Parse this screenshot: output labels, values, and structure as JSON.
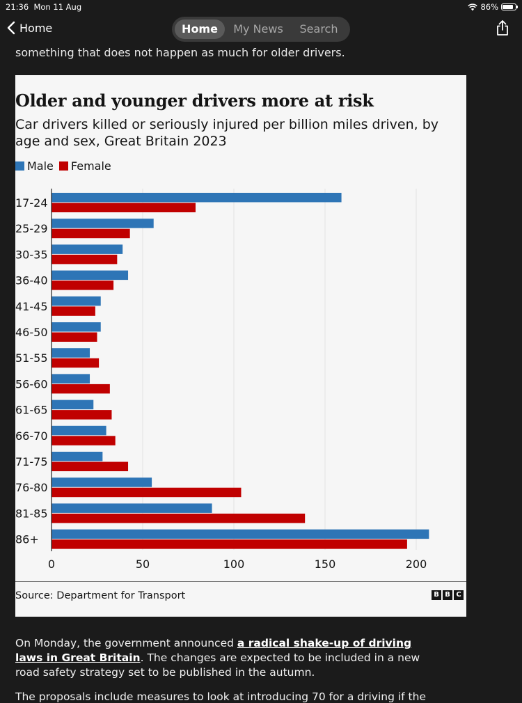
{
  "status": {
    "time": "21:36",
    "date": "Mon 11 Aug",
    "battery": "86%",
    "battery_level": 0.86
  },
  "nav": {
    "back_label": "Home",
    "tabs": [
      {
        "label": "Home",
        "active": true
      },
      {
        "label": "My News",
        "active": false
      },
      {
        "label": "Search",
        "active": false
      }
    ],
    "icons": {
      "back": "chevron-left-icon",
      "share": "share-icon",
      "wifi": "wifi-icon",
      "battery": "battery-icon"
    }
  },
  "article": {
    "previous_text": "something that does not happen as much for older drivers.",
    "paragraph": {
      "before": "On Monday, the government announced ",
      "link": "a radical shake-up of driving laws in Great Britain",
      "after": ". The changes are expected to be included in a new road safety strategy set to be published in the autumn."
    },
    "next_text": "The proposals include measures to look at introducing 70 for a driving if the"
  },
  "chart_data": {
    "type": "bar",
    "orientation": "horizontal",
    "title": "Older and younger drivers more at risk",
    "subtitle": "Car drivers killed or seriously injured per billion miles driven, by age and sex, Great Britain 2023",
    "categories": [
      "17-24",
      "25-29",
      "30-35",
      "36-40",
      "41-45",
      "46-50",
      "51-55",
      "56-60",
      "61-65",
      "66-70",
      "71-75",
      "76-80",
      "81-85",
      "86+"
    ],
    "series": [
      {
        "name": "Male",
        "color": "#2e75b6",
        "values": [
          159,
          56,
          39,
          42,
          27,
          27,
          21,
          21,
          23,
          30,
          28,
          55,
          88,
          207
        ]
      },
      {
        "name": "Female",
        "color": "#c00000",
        "values": [
          79,
          43,
          36,
          34,
          24,
          25,
          26,
          32,
          33,
          35,
          42,
          104,
          139,
          195
        ]
      }
    ],
    "xlim": [
      0,
      210
    ],
    "xticks": [
      0,
      50,
      100,
      150,
      200
    ],
    "grid": true,
    "legend_position": "top-left",
    "source": "Source: Department for Transport",
    "logo": "BBC"
  }
}
